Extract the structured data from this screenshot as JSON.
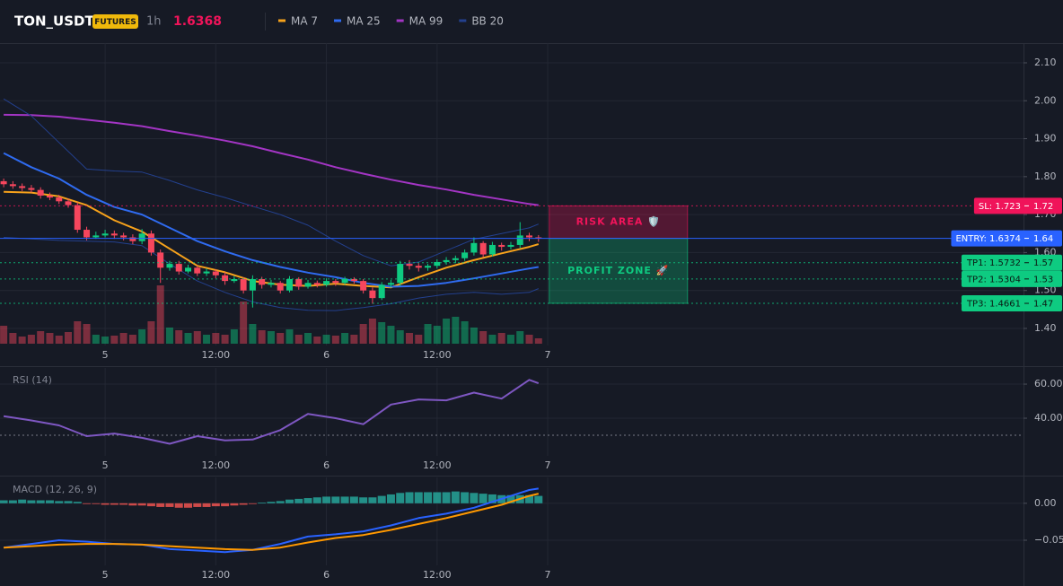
{
  "chart_data": [
    {
      "type": "candlestick",
      "title": "TON_USDT",
      "badge": "FUTURES",
      "interval": "1h",
      "last_price": 1.6368,
      "price_color": "#f0145a",
      "up_color": "#0ecb81",
      "down_color": "#f6465d",
      "grid": true,
      "xlim": [
        -0.4,
        110.6
      ],
      "xticks": [
        {
          "value": 11,
          "label": "5"
        },
        {
          "value": 23,
          "label": "12:00"
        },
        {
          "value": 35,
          "label": "6"
        },
        {
          "value": 47,
          "label": "12:00"
        },
        {
          "value": 59,
          "label": "7"
        }
      ],
      "ylim": [
        1.355,
        2.152
      ],
      "yticks": [
        {
          "value": 1.4,
          "label": "1.40"
        },
        {
          "value": 1.5,
          "label": "1.50"
        },
        {
          "value": 1.6,
          "label": "1.60"
        },
        {
          "value": 1.7,
          "label": "1.70"
        },
        {
          "value": 1.8,
          "label": "1.80"
        },
        {
          "value": 1.9,
          "label": "1.90"
        },
        {
          "value": 2.0,
          "label": "2.00"
        },
        {
          "value": 2.1,
          "label": "2.10"
        }
      ],
      "x": [
        0,
        1,
        2,
        3,
        4,
        5,
        6,
        7,
        8,
        9,
        10,
        11,
        12,
        13,
        14,
        15,
        16,
        17,
        18,
        19,
        20,
        21,
        22,
        23,
        24,
        25,
        26,
        27,
        28,
        29,
        30,
        31,
        32,
        33,
        34,
        35,
        36,
        37,
        38,
        39,
        40,
        41,
        42,
        43,
        44,
        45,
        46,
        47,
        48,
        49,
        50,
        51,
        52,
        53,
        54,
        55,
        56,
        57,
        58
      ],
      "open": [
        1.788,
        1.78,
        1.775,
        1.77,
        1.765,
        1.75,
        1.745,
        1.735,
        1.725,
        1.66,
        1.64,
        1.645,
        1.65,
        1.645,
        1.64,
        1.63,
        1.65,
        1.6,
        1.56,
        1.57,
        1.55,
        1.56,
        1.545,
        1.55,
        1.54,
        1.525,
        1.53,
        1.5,
        1.53,
        1.515,
        1.52,
        1.5,
        1.53,
        1.51,
        1.52,
        1.515,
        1.525,
        1.52,
        1.53,
        1.525,
        1.5,
        1.48,
        1.515,
        1.52,
        1.57,
        1.565,
        1.56,
        1.565,
        1.575,
        1.58,
        1.585,
        1.6,
        1.625,
        1.595,
        1.62,
        1.615,
        1.62,
        1.645,
        1.64
      ],
      "high": [
        1.795,
        1.788,
        1.782,
        1.778,
        1.772,
        1.758,
        1.752,
        1.742,
        1.732,
        1.668,
        1.655,
        1.66,
        1.658,
        1.652,
        1.648,
        1.662,
        1.658,
        1.608,
        1.578,
        1.578,
        1.568,
        1.566,
        1.558,
        1.556,
        1.548,
        1.538,
        1.535,
        1.54,
        1.536,
        1.528,
        1.525,
        1.538,
        1.535,
        1.528,
        1.526,
        1.532,
        1.53,
        1.536,
        1.535,
        1.53,
        1.508,
        1.522,
        1.528,
        1.578,
        1.58,
        1.572,
        1.57,
        1.582,
        1.588,
        1.592,
        1.608,
        1.64,
        1.63,
        1.628,
        1.626,
        1.628,
        1.68,
        1.652,
        1.646
      ],
      "low": [
        1.772,
        1.768,
        1.762,
        1.758,
        1.742,
        1.738,
        1.728,
        1.718,
        1.652,
        1.632,
        1.636,
        1.64,
        1.636,
        1.632,
        1.622,
        1.622,
        1.592,
        1.52,
        1.552,
        1.542,
        1.545,
        1.538,
        1.538,
        1.532,
        1.515,
        1.52,
        1.492,
        1.455,
        1.505,
        1.508,
        1.492,
        1.495,
        1.502,
        1.505,
        1.508,
        1.51,
        1.512,
        1.515,
        1.518,
        1.492,
        1.465,
        1.475,
        1.508,
        1.512,
        1.555,
        1.55,
        1.552,
        1.558,
        1.568,
        1.572,
        1.578,
        1.592,
        1.588,
        1.59,
        1.605,
        1.608,
        1.612,
        1.63,
        1.628
      ],
      "close": [
        1.78,
        1.775,
        1.77,
        1.765,
        1.75,
        1.745,
        1.735,
        1.725,
        1.66,
        1.64,
        1.645,
        1.65,
        1.645,
        1.64,
        1.63,
        1.65,
        1.6,
        1.56,
        1.57,
        1.55,
        1.56,
        1.545,
        1.55,
        1.54,
        1.525,
        1.53,
        1.5,
        1.53,
        1.515,
        1.52,
        1.5,
        1.53,
        1.51,
        1.52,
        1.515,
        1.525,
        1.52,
        1.53,
        1.525,
        1.5,
        1.48,
        1.515,
        1.52,
        1.57,
        1.565,
        1.56,
        1.565,
        1.575,
        1.58,
        1.585,
        1.6,
        1.625,
        1.595,
        1.62,
        1.615,
        1.62,
        1.645,
        1.64,
        1.637
      ],
      "volume": [
        20,
        12,
        8,
        10,
        14,
        12,
        9,
        13,
        25,
        22,
        10,
        8,
        9,
        12,
        10,
        16,
        25,
        65,
        18,
        15,
        12,
        14,
        10,
        12,
        10,
        16,
        47,
        22,
        15,
        14,
        12,
        16,
        10,
        12,
        8,
        10,
        9,
        12,
        10,
        22,
        28,
        24,
        20,
        15,
        12,
        10,
        22,
        20,
        28,
        30,
        25,
        18,
        14,
        10,
        12,
        10,
        14,
        10,
        6
      ],
      "series": [
        {
          "name": "MA 7",
          "color": "#f7a21b",
          "x": [
            0,
            3,
            6,
            9,
            12,
            15,
            18,
            21,
            24,
            27,
            30,
            33,
            36,
            39,
            42,
            45,
            48,
            51,
            54,
            57,
            58
          ],
          "values": [
            1.76,
            1.758,
            1.748,
            1.725,
            1.685,
            1.655,
            1.61,
            1.565,
            1.548,
            1.525,
            1.515,
            1.512,
            1.518,
            1.512,
            1.508,
            1.535,
            1.56,
            1.58,
            1.598,
            1.615,
            1.622
          ]
        },
        {
          "name": "MA 25",
          "color": "#2f6bf0",
          "x": [
            0,
            3,
            6,
            9,
            12,
            15,
            18,
            21,
            24,
            27,
            30,
            33,
            36,
            39,
            42,
            45,
            48,
            51,
            54,
            57,
            58
          ],
          "values": [
            1.862,
            1.825,
            1.795,
            1.752,
            1.72,
            1.7,
            1.665,
            1.63,
            1.603,
            1.58,
            1.562,
            1.547,
            1.535,
            1.52,
            1.51,
            1.512,
            1.52,
            1.532,
            1.545,
            1.558,
            1.562
          ]
        },
        {
          "name": "MA 99",
          "color": "#a335c4",
          "x": [
            0,
            3,
            6,
            9,
            12,
            15,
            18,
            21,
            24,
            27,
            30,
            33,
            36,
            39,
            42,
            45,
            48,
            51,
            54,
            57,
            58
          ],
          "values": [
            1.963,
            1.962,
            1.958,
            1.95,
            1.942,
            1.933,
            1.92,
            1.908,
            1.895,
            1.88,
            1.862,
            1.845,
            1.825,
            1.808,
            1.792,
            1.778,
            1.766,
            1.752,
            1.74,
            1.728,
            1.725
          ]
        },
        {
          "name": "BB 20",
          "color": "#23408e",
          "x": [
            0,
            3,
            6,
            9,
            12,
            15,
            18,
            21,
            24,
            27,
            30,
            33,
            36,
            39,
            42,
            45,
            48,
            51,
            54,
            57,
            58
          ],
          "upper": [
            2.005,
            1.96,
            1.89,
            1.82,
            1.815,
            1.812,
            1.79,
            1.765,
            1.745,
            1.722,
            1.7,
            1.672,
            1.63,
            1.592,
            1.565,
            1.575,
            1.605,
            1.635,
            1.65,
            1.665,
            1.675
          ],
          "lower": [
            1.64,
            1.636,
            1.632,
            1.63,
            1.628,
            1.618,
            1.57,
            1.525,
            1.495,
            1.47,
            1.455,
            1.448,
            1.447,
            1.455,
            1.465,
            1.48,
            1.49,
            1.495,
            1.49,
            1.495,
            1.505
          ]
        }
      ],
      "levels": [
        {
          "label": "SL: 1.723",
          "price": 1.723,
          "price_label": "1.72",
          "color": "#f0145a",
          "text_color": "#ffffff",
          "dashed": true
        },
        {
          "label": "ENTRY: 1.6374",
          "price": 1.6374,
          "price_label": "1.64",
          "color": "#2962ff",
          "text_color": "#ffffff",
          "dashed": false
        },
        {
          "label": "TP1: 1.5732",
          "price": 1.5732,
          "price_label": "1.57",
          "color": "#0ecb81",
          "text_color": "#0b1a14",
          "dashed": true
        },
        {
          "label": "TP2: 1.5304",
          "price": 1.5304,
          "price_label": "1.53",
          "color": "#0ecb81",
          "text_color": "#0b1a14",
          "dashed": true
        },
        {
          "label": "TP3: 1.4661",
          "price": 1.4661,
          "price_label": "1.47",
          "color": "#0ecb81",
          "text_color": "#0b1a14",
          "dashed": true
        }
      ],
      "risk_label": "RISK AREA 🛡️",
      "profit_label": "PROFIT ZONE 🚀"
    },
    {
      "type": "line",
      "title": "RSI (14)",
      "grid": true,
      "xlim": [
        -0.4,
        110.6
      ],
      "xticks": [
        {
          "value": 11,
          "label": "5"
        },
        {
          "value": 23,
          "label": "12:00"
        },
        {
          "value": 35,
          "label": "6"
        },
        {
          "value": 47,
          "label": "12:00"
        },
        {
          "value": 59,
          "label": "7"
        }
      ],
      "ylim": [
        17.9,
        69.5
      ],
      "yticks": [
        {
          "value": 40,
          "label": "40.00"
        },
        {
          "value": 60,
          "label": "60.00"
        }
      ],
      "hlines": [
        30
      ],
      "series": [
        {
          "color": "#7e57c2",
          "x": [
            0,
            3,
            6,
            9,
            12,
            15,
            18,
            21,
            24,
            27,
            30,
            33,
            36,
            39,
            42,
            45,
            48,
            51,
            54,
            57,
            58
          ],
          "values": [
            41.2,
            38.7,
            35.8,
            29.5,
            31.0,
            28.5,
            25.0,
            29.5,
            27.0,
            27.5,
            33.0,
            42.5,
            40.0,
            36.5,
            48.0,
            51.0,
            50.5,
            55.0,
            51.5,
            62.5,
            60.5
          ]
        }
      ]
    },
    {
      "type": "combo",
      "title": "MACD (12, 26, 9)",
      "grid": true,
      "xlim": [
        -0.4,
        110.6
      ],
      "xticks": [
        {
          "value": 11,
          "label": "5"
        },
        {
          "value": 23,
          "label": "12:00"
        },
        {
          "value": 35,
          "label": "6"
        },
        {
          "value": 47,
          "label": "12:00"
        },
        {
          "value": 59,
          "label": "7"
        }
      ],
      "ylim": [
        -0.084,
        0.035
      ],
      "yticks": [
        {
          "value": -0.05,
          "label": "−0.05"
        },
        {
          "value": 0,
          "label": "0.00"
        }
      ],
      "histogram": {
        "up_color": "#26a69a",
        "down_color": "#ef5350",
        "x": [
          0,
          1,
          2,
          3,
          4,
          5,
          6,
          7,
          8,
          9,
          10,
          11,
          12,
          13,
          14,
          15,
          16,
          17,
          18,
          19,
          20,
          21,
          22,
          23,
          24,
          25,
          26,
          27,
          28,
          29,
          30,
          31,
          32,
          33,
          34,
          35,
          36,
          37,
          38,
          39,
          40,
          41,
          42,
          43,
          44,
          45,
          46,
          47,
          48,
          49,
          50,
          51,
          52,
          53,
          54,
          55,
          56,
          57,
          58
        ],
        "values": [
          0.004,
          0.004,
          0.005,
          0.004,
          0.004,
          0.004,
          0.003,
          0.003,
          0.002,
          -0.001,
          -0.001,
          -0.002,
          -0.002,
          -0.002,
          -0.003,
          -0.003,
          -0.004,
          -0.005,
          -0.005,
          -0.006,
          -0.006,
          -0.005,
          -0.005,
          -0.004,
          -0.004,
          -0.003,
          -0.002,
          -0.001,
          0.001,
          0.002,
          0.003,
          0.005,
          0.006,
          0.007,
          0.008,
          0.009,
          0.009,
          0.009,
          0.009,
          0.008,
          0.008,
          0.01,
          0.012,
          0.014,
          0.015,
          0.015,
          0.015,
          0.015,
          0.015,
          0.016,
          0.015,
          0.014,
          0.013,
          0.012,
          0.011,
          0.011,
          0.011,
          0.011,
          0.01
        ]
      },
      "series": [
        {
          "color": "#2962ff",
          "x": [
            0,
            3,
            6,
            9,
            12,
            15,
            18,
            21,
            24,
            27,
            30,
            33,
            36,
            39,
            42,
            45,
            48,
            51,
            54,
            57,
            58
          ],
          "values": [
            -0.06,
            -0.055,
            -0.05,
            -0.052,
            -0.055,
            -0.056,
            -0.062,
            -0.064,
            -0.066,
            -0.063,
            -0.055,
            -0.045,
            -0.042,
            -0.038,
            -0.03,
            -0.02,
            -0.014,
            -0.006,
            0.006,
            0.018,
            0.02
          ]
        },
        {
          "color": "#ff9800",
          "x": [
            0,
            3,
            6,
            9,
            12,
            15,
            18,
            21,
            24,
            27,
            30,
            33,
            36,
            39,
            42,
            45,
            48,
            51,
            54,
            57,
            58
          ],
          "values": [
            -0.06,
            -0.058,
            -0.056,
            -0.055,
            -0.055,
            -0.056,
            -0.058,
            -0.06,
            -0.062,
            -0.063,
            -0.06,
            -0.053,
            -0.047,
            -0.043,
            -0.036,
            -0.028,
            -0.02,
            -0.011,
            -0.002,
            0.01,
            0.013
          ]
        }
      ]
    }
  ]
}
